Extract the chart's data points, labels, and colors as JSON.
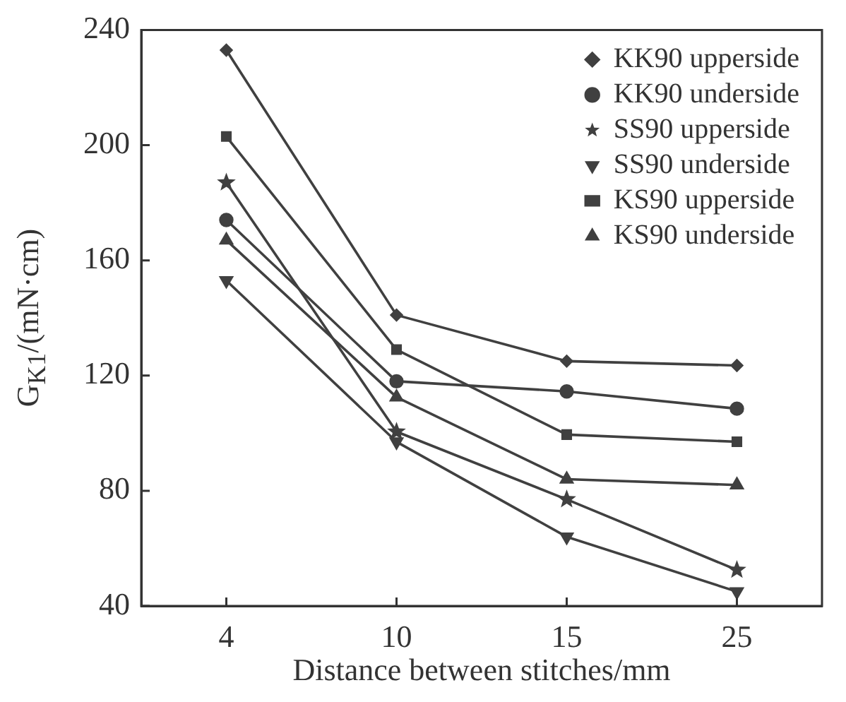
{
  "chart_data": {
    "type": "line",
    "xlabel": "Distance between stitches/mm",
    "ylabel": "G$_{K1}$/(mN·cm)",
    "categories": [
      "4",
      "10",
      "15",
      "25"
    ],
    "ylim": [
      40,
      240
    ],
    "yticks": [
      40,
      80,
      120,
      160,
      200,
      240
    ],
    "grid": false,
    "legend": "top right",
    "line_style": "solid",
    "series": [
      {
        "name": "KK90 upperside",
        "color": "#404040",
        "marker": "diamond",
        "values": [
          233,
          141,
          125,
          123.5
        ]
      },
      {
        "name": "KK90 underside",
        "color": "#404040",
        "marker": "circle",
        "values": [
          174,
          118,
          114.5,
          108.5
        ]
      },
      {
        "name": "SS90 upperside",
        "color": "#404040",
        "marker": "star",
        "values": [
          187,
          100.5,
          77,
          52.5
        ]
      },
      {
        "name": "SS90 underside",
        "color": "#404040",
        "marker": "triangle_down",
        "values": [
          153,
          97,
          64,
          45
        ]
      },
      {
        "name": "KS90 upperside",
        "color": "#404040",
        "marker": "square",
        "values": [
          203,
          129,
          99.5,
          97
        ]
      },
      {
        "name": "KS90 underside",
        "color": "#404040",
        "marker": "triangle",
        "values": [
          167,
          112.5,
          84,
          82
        ]
      }
    ]
  }
}
